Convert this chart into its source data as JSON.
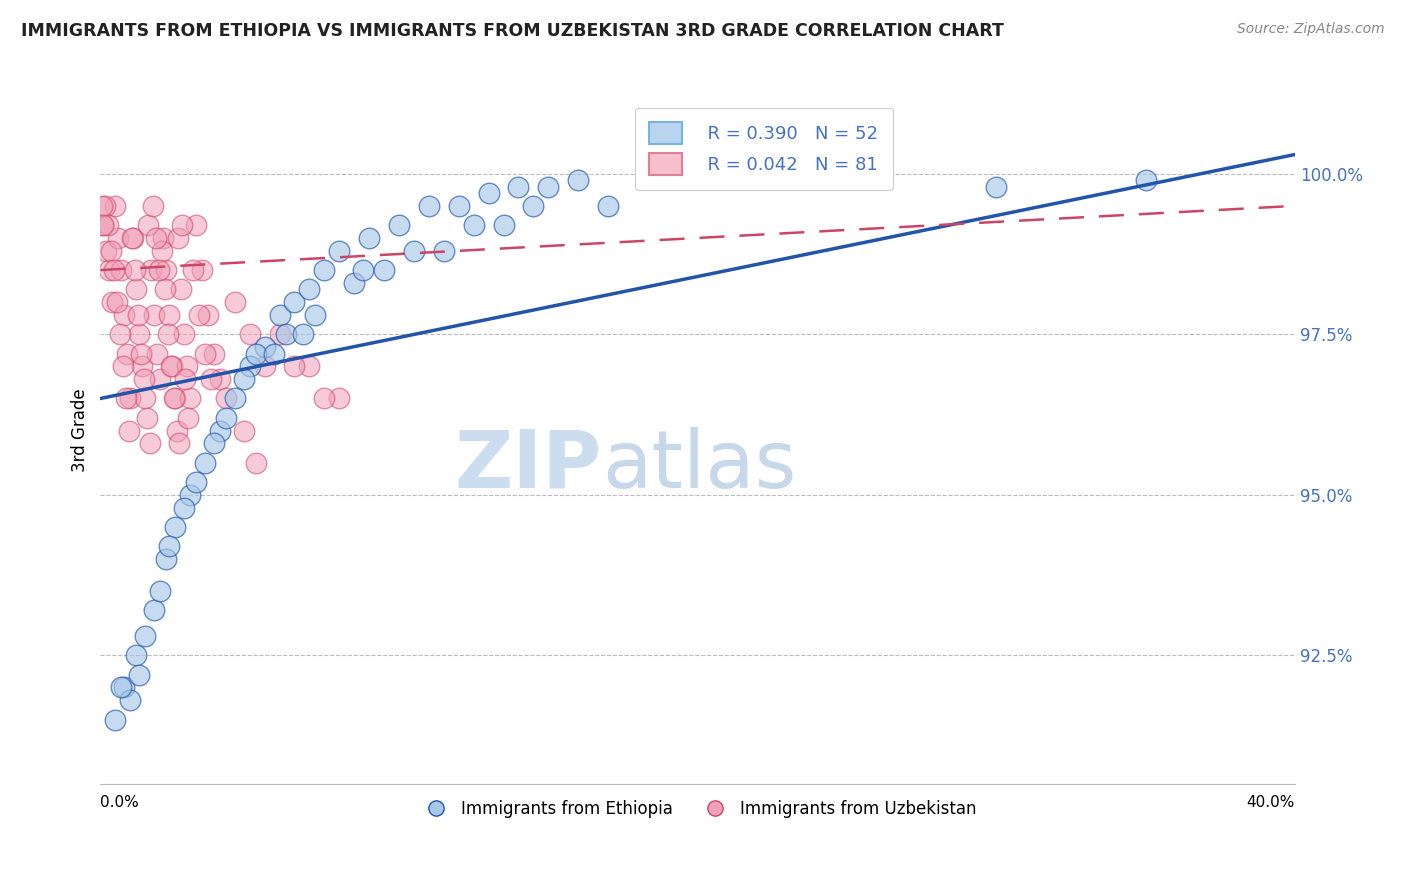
{
  "title": "IMMIGRANTS FROM ETHIOPIA VS IMMIGRANTS FROM UZBEKISTAN 3RD GRADE CORRELATION CHART",
  "source": "Source: ZipAtlas.com",
  "ylabel": "3rd Grade",
  "y_ticks": [
    92.5,
    95.0,
    97.5,
    100.0
  ],
  "y_tick_labels": [
    "92.5%",
    "95.0%",
    "97.5%",
    "100.0%"
  ],
  "xlim": [
    0.0,
    40.0
  ],
  "ylim": [
    90.5,
    101.5
  ],
  "legend_r1": "R = 0.390",
  "legend_n1": "N = 52",
  "legend_r2": "R = 0.042",
  "legend_n2": "N = 81",
  "color_ethiopia": "#a8c8e8",
  "color_uzbekistan": "#f0a0b8",
  "color_ethiopia_line": "#2255aa",
  "color_uzbekistan_line": "#cc4466",
  "legend_label1": "Immigrants from Ethiopia",
  "legend_label2": "Immigrants from Uzbekistan",
  "eth_line_x0": 0.0,
  "eth_line_y0": 96.5,
  "eth_line_x1": 40.0,
  "eth_line_y1": 100.3,
  "uzb_line_x0": 0.0,
  "uzb_line_y0": 98.5,
  "uzb_line_x1": 40.0,
  "uzb_line_y1": 99.5,
  "ethiopia_x": [
    0.5,
    0.8,
    1.0,
    1.2,
    1.5,
    1.8,
    2.0,
    2.2,
    2.5,
    3.0,
    3.5,
    4.0,
    4.5,
    5.0,
    5.5,
    6.0,
    6.5,
    7.0,
    7.5,
    8.0,
    9.0,
    10.0,
    11.0,
    12.0,
    13.0,
    14.0,
    15.0,
    16.0,
    3.2,
    3.8,
    4.2,
    5.2,
    6.2,
    7.2,
    8.5,
    10.5,
    12.5,
    14.5,
    2.8,
    4.8,
    6.8,
    8.8,
    30.0,
    35.0,
    17.0,
    1.3,
    0.7,
    9.5,
    11.5,
    13.5,
    2.3,
    5.8
  ],
  "ethiopia_y": [
    91.5,
    92.0,
    91.8,
    92.5,
    92.8,
    93.2,
    93.5,
    94.0,
    94.5,
    95.0,
    95.5,
    96.0,
    96.5,
    97.0,
    97.3,
    97.8,
    98.0,
    98.2,
    98.5,
    98.8,
    99.0,
    99.2,
    99.5,
    99.5,
    99.7,
    99.8,
    99.8,
    99.9,
    95.2,
    95.8,
    96.2,
    97.2,
    97.5,
    97.8,
    98.3,
    98.8,
    99.2,
    99.5,
    94.8,
    96.8,
    97.5,
    98.5,
    99.8,
    99.9,
    99.5,
    92.2,
    92.0,
    98.5,
    98.8,
    99.2,
    94.2,
    97.2
  ],
  "uzbekistan_x": [
    0.1,
    0.2,
    0.3,
    0.4,
    0.5,
    0.6,
    0.7,
    0.8,
    0.9,
    1.0,
    1.1,
    1.2,
    1.3,
    1.4,
    1.5,
    1.6,
    1.7,
    1.8,
    1.9,
    2.0,
    2.1,
    2.2,
    2.3,
    2.4,
    2.5,
    2.6,
    2.7,
    2.8,
    2.9,
    3.0,
    3.2,
    3.4,
    3.6,
    3.8,
    4.0,
    4.5,
    5.0,
    5.5,
    6.0,
    7.0,
    8.0,
    0.15,
    0.25,
    0.35,
    0.45,
    0.55,
    0.65,
    0.75,
    0.85,
    0.95,
    1.05,
    1.15,
    1.25,
    1.35,
    1.45,
    1.55,
    1.65,
    1.75,
    2.05,
    2.15,
    2.25,
    2.35,
    2.45,
    2.55,
    2.65,
    2.75,
    3.1,
    3.3,
    3.5,
    3.7,
    4.2,
    4.8,
    5.2,
    6.5,
    7.5,
    1.85,
    1.95,
    2.85,
    2.95,
    0.05,
    0.08
  ],
  "uzbekistan_y": [
    99.2,
    98.8,
    98.5,
    98.0,
    99.5,
    99.0,
    98.5,
    97.8,
    97.2,
    96.5,
    99.0,
    98.2,
    97.5,
    97.0,
    96.5,
    99.2,
    98.5,
    97.8,
    97.2,
    96.8,
    99.0,
    98.5,
    97.8,
    97.0,
    96.5,
    99.0,
    98.2,
    97.5,
    97.0,
    96.5,
    99.2,
    98.5,
    97.8,
    97.2,
    96.8,
    98.0,
    97.5,
    97.0,
    97.5,
    97.0,
    96.5,
    99.5,
    99.2,
    98.8,
    98.5,
    98.0,
    97.5,
    97.0,
    96.5,
    96.0,
    99.0,
    98.5,
    97.8,
    97.2,
    96.8,
    96.2,
    95.8,
    99.5,
    98.8,
    98.2,
    97.5,
    97.0,
    96.5,
    96.0,
    95.8,
    99.2,
    98.5,
    97.8,
    97.2,
    96.8,
    96.5,
    96.0,
    95.5,
    97.0,
    96.5,
    99.0,
    98.5,
    96.8,
    96.2,
    99.5,
    99.2
  ]
}
